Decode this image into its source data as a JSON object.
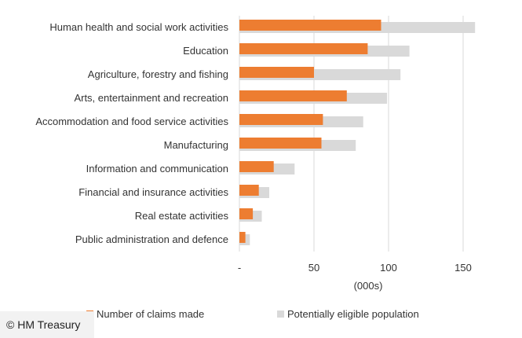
{
  "chart_data": {
    "type": "bar",
    "orientation": "horizontal",
    "categories": [
      "Human health and social work activities",
      "Education",
      "Agriculture, forestry and fishing",
      "Arts, entertainment and recreation",
      "Accommodation and food service activities",
      "Manufacturing",
      "Information and communication",
      "Financial and insurance activities",
      "Real estate activities",
      "Public administration and defence"
    ],
    "series": [
      {
        "name": "Number of claims made",
        "color": "#ed7d31",
        "values": [
          95,
          86,
          50,
          72,
          56,
          55,
          23,
          13,
          9,
          4
        ]
      },
      {
        "name": "Potentially eligible population",
        "color": "#d9d9d9",
        "values": [
          158,
          114,
          108,
          99,
          83,
          78,
          37,
          20,
          15,
          7
        ]
      }
    ],
    "xlabel": "(000s)",
    "xlim": [
      0,
      170
    ],
    "xticks": [
      {
        "value": 0,
        "label": "-"
      },
      {
        "value": 50,
        "label": "50"
      },
      {
        "value": 100,
        "label": "100"
      },
      {
        "value": 150,
        "label": "150"
      }
    ],
    "grid": true,
    "legend_position": "bottom"
  },
  "credit": "© HM Treasury"
}
